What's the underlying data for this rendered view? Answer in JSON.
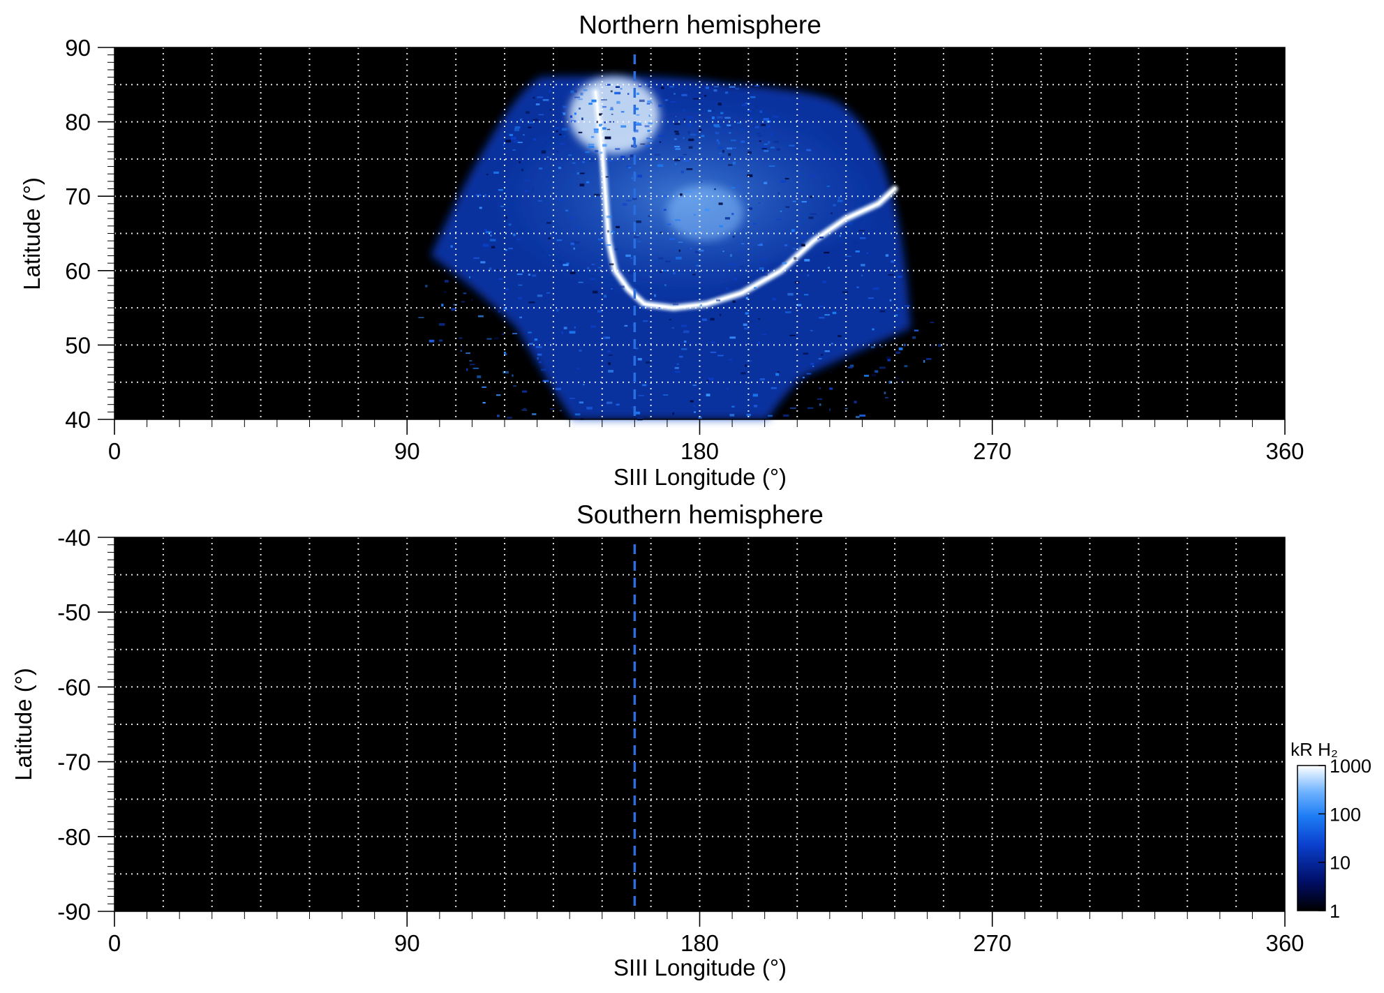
{
  "chart_data": [
    {
      "type": "heatmap",
      "title": "Northern hemisphere",
      "xlabel": "SIII Longitude (°)",
      "ylabel": "Latitude (°)",
      "xlim": [
        0,
        360
      ],
      "ylim": [
        40,
        90
      ],
      "x_ticks": [
        "0",
        "90",
        "180",
        "270",
        "360"
      ],
      "y_ticks": [
        "40",
        "50",
        "60",
        "70",
        "80",
        "90"
      ],
      "grid": true,
      "reference_longitude": 160,
      "emission": {
        "coverage": "longitude ~77–245° at 63° latitude, ~140–215° at 40° latitude, up to ~86° latitude",
        "bright_oval": [
          {
            "lon": 148,
            "lat": 84
          },
          {
            "lon": 150,
            "lat": 76
          },
          {
            "lon": 151,
            "lat": 70
          },
          {
            "lon": 152,
            "lat": 64
          },
          {
            "lon": 154,
            "lat": 60
          },
          {
            "lon": 158,
            "lat": 57.5
          },
          {
            "lon": 163,
            "lat": 55.5
          },
          {
            "lon": 172,
            "lat": 55
          },
          {
            "lon": 182,
            "lat": 55.5
          },
          {
            "lon": 193,
            "lat": 57
          },
          {
            "lon": 205,
            "lat": 60
          },
          {
            "lon": 215,
            "lat": 64
          },
          {
            "lon": 225,
            "lat": 67
          },
          {
            "lon": 235,
            "lat": 69
          },
          {
            "lon": 240,
            "lat": 71
          }
        ]
      }
    },
    {
      "type": "heatmap",
      "title": "Southern hemisphere",
      "xlabel": "SIII Longitude (°)",
      "ylabel": "Latitude (°)",
      "xlim": [
        0,
        360
      ],
      "ylim": [
        -90,
        -40
      ],
      "x_ticks": [
        "0",
        "90",
        "180",
        "270",
        "360"
      ],
      "y_ticks": [
        "-90",
        "-80",
        "-70",
        "-60",
        "-50",
        "-40"
      ],
      "grid": true,
      "reference_longitude": 160,
      "emission": null
    }
  ],
  "colorbar": {
    "label": "kR H₂",
    "scale": "log",
    "range": [
      1,
      1000
    ],
    "tick_labels": [
      "1",
      "10",
      "100",
      "1000"
    ],
    "colors": [
      "#000000",
      "#000e66",
      "#0a3fcc",
      "#1d7cf5",
      "#6fb3ff",
      "#ffffff"
    ]
  },
  "colors": {
    "background": "#000000",
    "grid": "#ffffff",
    "reference_line": "#2a6fe0"
  }
}
